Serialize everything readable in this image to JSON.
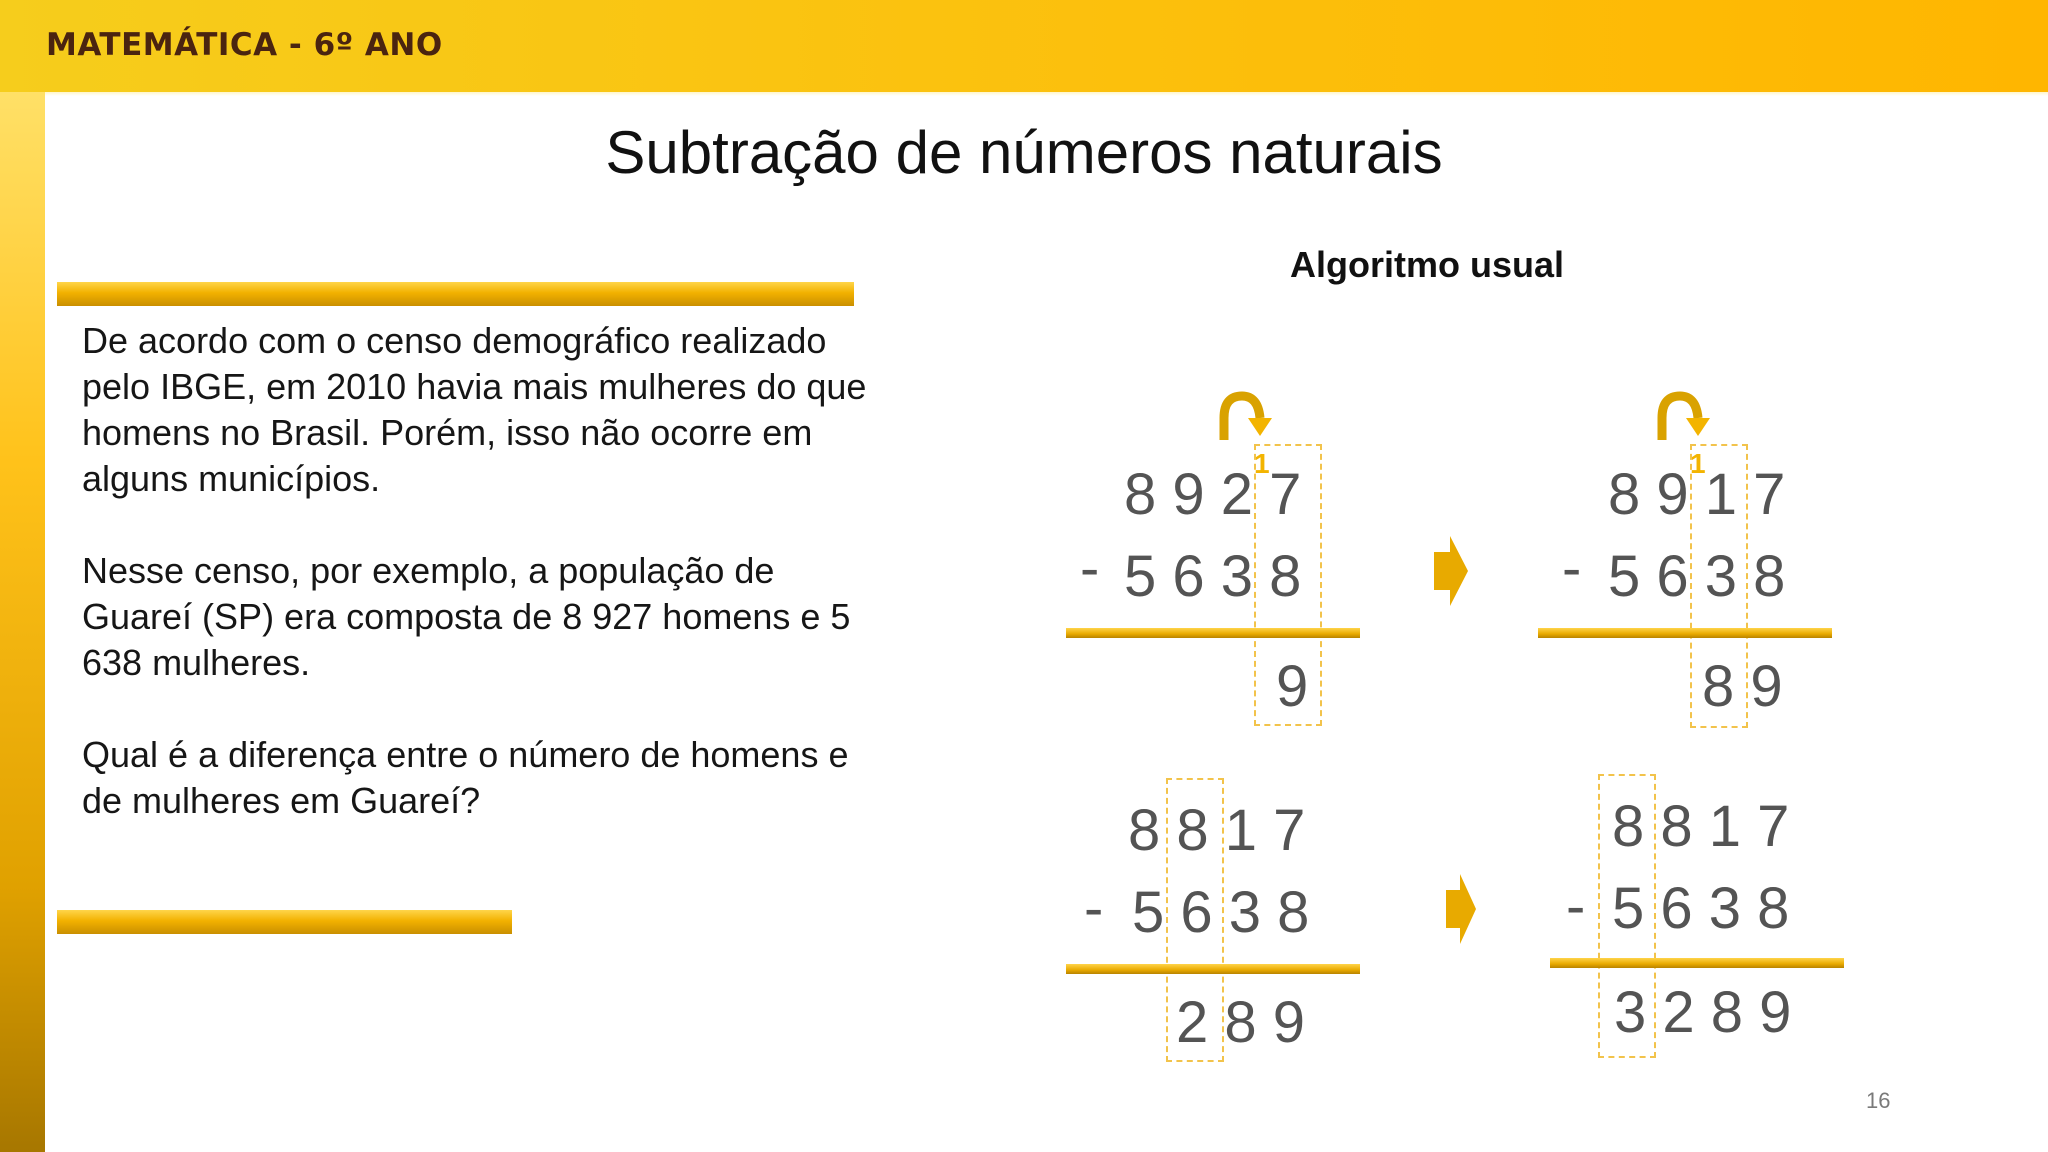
{
  "header": {
    "label": "MATEMÁTICA - 6º ANO"
  },
  "title": "Subtração de números naturais",
  "problem": {
    "paragraphs": [
      "De acordo com o censo demográfico realizado pelo IBGE, em 2010 havia mais mulheres do que homens no Brasil. Porém, isso não ocorre em alguns municípios.",
      "Nesse censo, por exemplo, a população de Guareí (SP) era composta de 8 927 homens e 5 638 mulheres.",
      "Qual é a diferença entre o número de homens e de mulheres em Guareí?"
    ]
  },
  "algorithm": {
    "subtitle": "Algoritmo usual",
    "steps": [
      {
        "top": "8 9 2 7",
        "operator": "-",
        "bottom": "5 6 3 8",
        "result": "9",
        "carry": "1"
      },
      {
        "top": "8 9 1 7",
        "operator": "-",
        "bottom": "5 6 3 8",
        "result": "8 9",
        "carry": "1"
      },
      {
        "top": "8 8 1 7",
        "operator": "-",
        "bottom": "5 6 3 8",
        "result": "2 8 9"
      },
      {
        "top": "8 8 1 7",
        "operator": "-",
        "bottom": "5 6 3 8",
        "result": "3 2 8 9"
      }
    ]
  },
  "colors": {
    "accent": "#f3b400",
    "header_text": "#4a2410",
    "digits": "#545454"
  },
  "page_number": "16"
}
